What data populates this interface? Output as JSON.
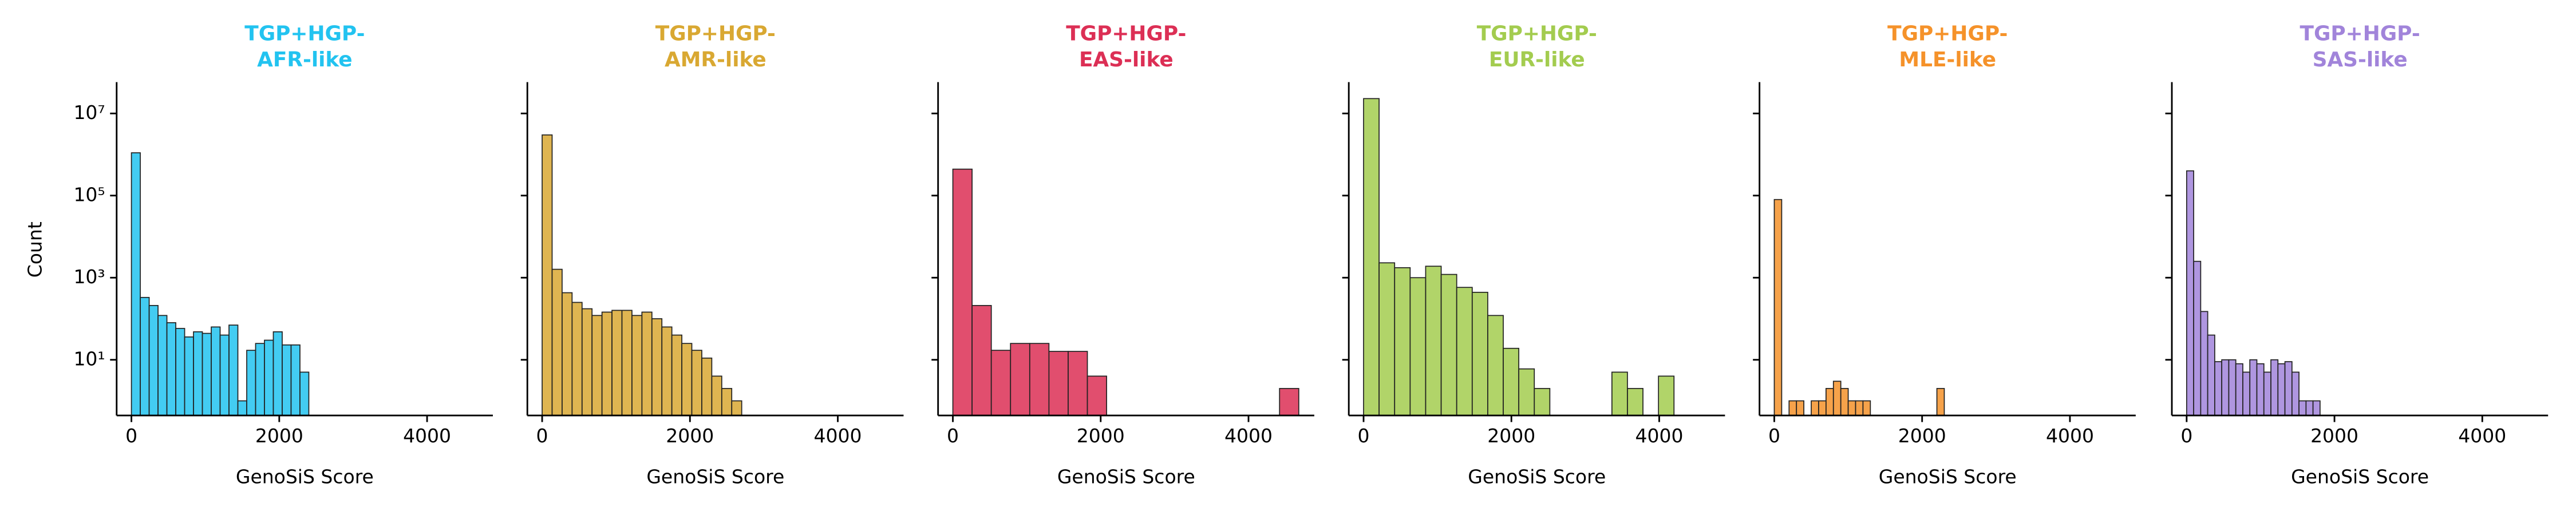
{
  "chart_data": [
    {
      "type": "histogram",
      "title": [
        "TGP+HGP-",
        "AFR-like"
      ],
      "xlabel": "GenoSiS Score",
      "ylabel": "Count",
      "color": "#22c3f0",
      "bins": [
        0,
        120,
        240,
        360,
        480,
        600,
        720,
        840,
        960,
        1080,
        1200,
        1320,
        1440,
        1560,
        1680,
        1800,
        1920,
        2040,
        2160,
        2280,
        2400
      ],
      "values": [
        1100000,
        330,
        210,
        120,
        80,
        58,
        36,
        48,
        44,
        63,
        40,
        70,
        1,
        17,
        25,
        30,
        48,
        23,
        23,
        5
      ],
      "xlim": [
        -200,
        4890
      ],
      "xticks": [
        0,
        2000,
        4000
      ],
      "log_y": true,
      "ylim": [
        0.44,
        58000000
      ],
      "yticks": [
        {
          "value": 10,
          "label": "10¹"
        },
        {
          "value": 1000,
          "label": "10³"
        },
        {
          "value": 100000,
          "label": "10⁵"
        },
        {
          "value": 10000000,
          "label": "10⁷"
        }
      ]
    },
    {
      "type": "histogram",
      "title": [
        "TGP+HGP-",
        "AMR-like"
      ],
      "xlabel": "GenoSiS Score",
      "color": "#d9a832",
      "bins": [
        0,
        135,
        270,
        405,
        540,
        675,
        810,
        945,
        1080,
        1215,
        1350,
        1485,
        1620,
        1755,
        1890,
        2025,
        2160,
        2295,
        2430,
        2565,
        2700
      ],
      "values": [
        3000000,
        1600,
        430,
        250,
        175,
        120,
        145,
        160,
        160,
        120,
        145,
        100,
        63,
        40,
        25,
        17,
        11,
        4,
        2,
        1
      ],
      "xlim": [
        -200,
        4890
      ],
      "xticks": [
        0,
        2000,
        4000
      ],
      "log_y": true,
      "ylim": [
        0.44,
        58000000
      ],
      "yticks": [
        10,
        1000,
        100000,
        10000000
      ]
    },
    {
      "type": "histogram",
      "title": [
        "TGP+HGP-",
        "EAS-like"
      ],
      "xlabel": "GenoSiS Score",
      "color": "#dc2f55",
      "bins": [
        0,
        260,
        520,
        780,
        1040,
        1300,
        1560,
        1820,
        2080,
        2340,
        2600,
        2860,
        3120,
        3380,
        3640,
        3900,
        4160,
        4420,
        4680
      ],
      "values": [
        440000,
        210,
        17,
        25,
        25,
        16,
        16,
        4,
        0,
        0,
        0,
        0,
        0,
        0,
        0,
        0,
        0,
        2
      ],
      "xlim": [
        -200,
        4890
      ],
      "xticks": [
        0,
        2000,
        4000
      ],
      "log_y": true,
      "ylim": [
        0.44,
        58000000
      ],
      "yticks": [
        10,
        1000,
        100000,
        10000000
      ]
    },
    {
      "type": "histogram",
      "title": [
        "TGP+HGP-",
        "EUR-like"
      ],
      "xlabel": "GenoSiS Score",
      "color": "#a3cc4f",
      "bins": [
        0,
        210,
        420,
        630,
        840,
        1050,
        1260,
        1470,
        1680,
        1890,
        2100,
        2310,
        2520,
        2730,
        2940,
        3150,
        3360,
        3570,
        3780,
        3990,
        4200
      ],
      "values": [
        23000000,
        2300,
        1750,
        1000,
        1900,
        1200,
        580,
        440,
        120,
        19,
        6,
        2,
        0,
        0,
        0,
        0,
        5,
        2,
        0,
        4
      ],
      "xlim": [
        -200,
        4890
      ],
      "xticks": [
        0,
        2000,
        4000
      ],
      "log_y": true,
      "ylim": [
        0.44,
        58000000
      ],
      "yticks": [
        10,
        1000,
        100000,
        10000000
      ]
    },
    {
      "type": "histogram",
      "title": [
        "TGP+HGP-",
        "MLE-like"
      ],
      "xlabel": "GenoSiS Score",
      "color": "#f5922a",
      "bins": [
        0,
        100,
        200,
        300,
        400,
        500,
        600,
        700,
        800,
        900,
        1000,
        1100,
        1200,
        1300,
        1400,
        1500,
        1600,
        1700,
        1800,
        1900,
        2000,
        2100,
        2200,
        2300
      ],
      "values": [
        80000,
        0,
        1,
        1,
        0,
        1,
        1,
        2,
        3,
        2,
        1,
        1,
        1,
        0,
        0,
        0,
        0,
        0,
        0,
        0,
        0,
        0,
        2
      ],
      "xlim": [
        -200,
        4890
      ],
      "xticks": [
        0,
        2000,
        4000
      ],
      "log_y": true,
      "ylim": [
        0.44,
        58000000
      ],
      "yticks": [
        10,
        1000,
        100000,
        10000000
      ]
    },
    {
      "type": "histogram",
      "title": [
        "TGP+HGP-",
        "SAS-like"
      ],
      "xlabel": "GenoSiS Score",
      "color": "#a184da",
      "bins": [
        0,
        95,
        190,
        285,
        380,
        475,
        570,
        665,
        760,
        855,
        950,
        1045,
        1140,
        1235,
        1330,
        1425,
        1520,
        1615,
        1710,
        1805,
        1900
      ],
      "values": [
        400000,
        2500,
        150,
        40,
        9,
        10,
        10,
        8,
        5,
        10,
        8,
        5,
        10,
        8,
        9,
        5,
        1,
        1,
        1,
        0
      ],
      "xlim": [
        -200,
        4890
      ],
      "xticks": [
        0,
        2000,
        4000
      ],
      "log_y": true,
      "ylim": [
        0.44,
        58000000
      ],
      "yticks": [
        10,
        1000,
        100000,
        10000000
      ]
    }
  ]
}
